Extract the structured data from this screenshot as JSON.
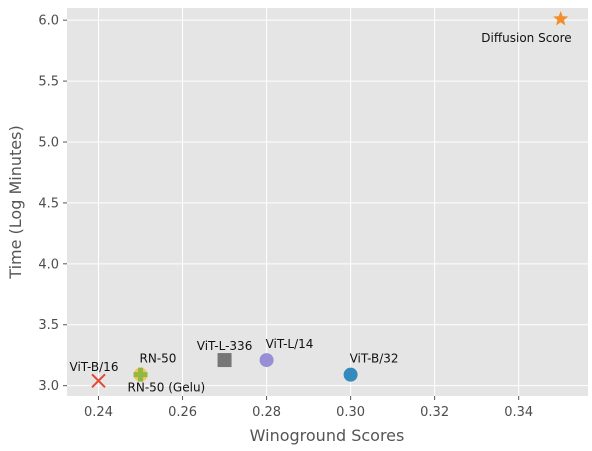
{
  "chart_data": {
    "type": "scatter",
    "title": "",
    "xlabel": "Winoground Scores",
    "ylabel": "Time (Log Minutes)",
    "xlim": [
      0.2325,
      0.3565
    ],
    "ylim": [
      2.915,
      6.1
    ],
    "grid": true,
    "x_ticks": [
      0.24,
      0.26,
      0.28,
      0.3,
      0.32,
      0.34
    ],
    "x_tick_labels": [
      "0.24",
      "0.26",
      "0.28",
      "0.30",
      "0.32",
      "0.34"
    ],
    "y_ticks": [
      3.0,
      3.5,
      4.0,
      4.5,
      5.0,
      5.5,
      6.0
    ],
    "y_tick_labels": [
      "3.0",
      "3.5",
      "4.0",
      "4.5",
      "5.0",
      "5.5",
      "6.0"
    ],
    "points": [
      {
        "label": "ViT-B/16",
        "x": 0.24,
        "y": 3.04,
        "marker": "x",
        "color": "#E24A33",
        "label_anchor": "above-left"
      },
      {
        "label": "RN-50",
        "x": 0.25,
        "y": 3.09,
        "marker": "circle",
        "color": "#FBC15E",
        "label_anchor": "above-right"
      },
      {
        "label": "RN-50 (Gelu)",
        "x": 0.25,
        "y": 3.09,
        "marker": "plus",
        "color": "#8EBA42",
        "label_anchor": "below-right"
      },
      {
        "label": "ViT-L-336",
        "x": 0.27,
        "y": 3.21,
        "marker": "square",
        "color": "#777777",
        "label_anchor": "above"
      },
      {
        "label": "ViT-L/14",
        "x": 0.28,
        "y": 3.21,
        "marker": "circle",
        "color": "#988ED5",
        "label_anchor": "above-right"
      },
      {
        "label": "ViT-B/32",
        "x": 0.3,
        "y": 3.09,
        "marker": "circle",
        "color": "#348ABD",
        "label_anchor": "above-right"
      },
      {
        "label": "Diffusion Score",
        "x": 0.35,
        "y": 6.01,
        "marker": "star",
        "color": "#F28E2B",
        "label_anchor": "below-left"
      }
    ]
  }
}
